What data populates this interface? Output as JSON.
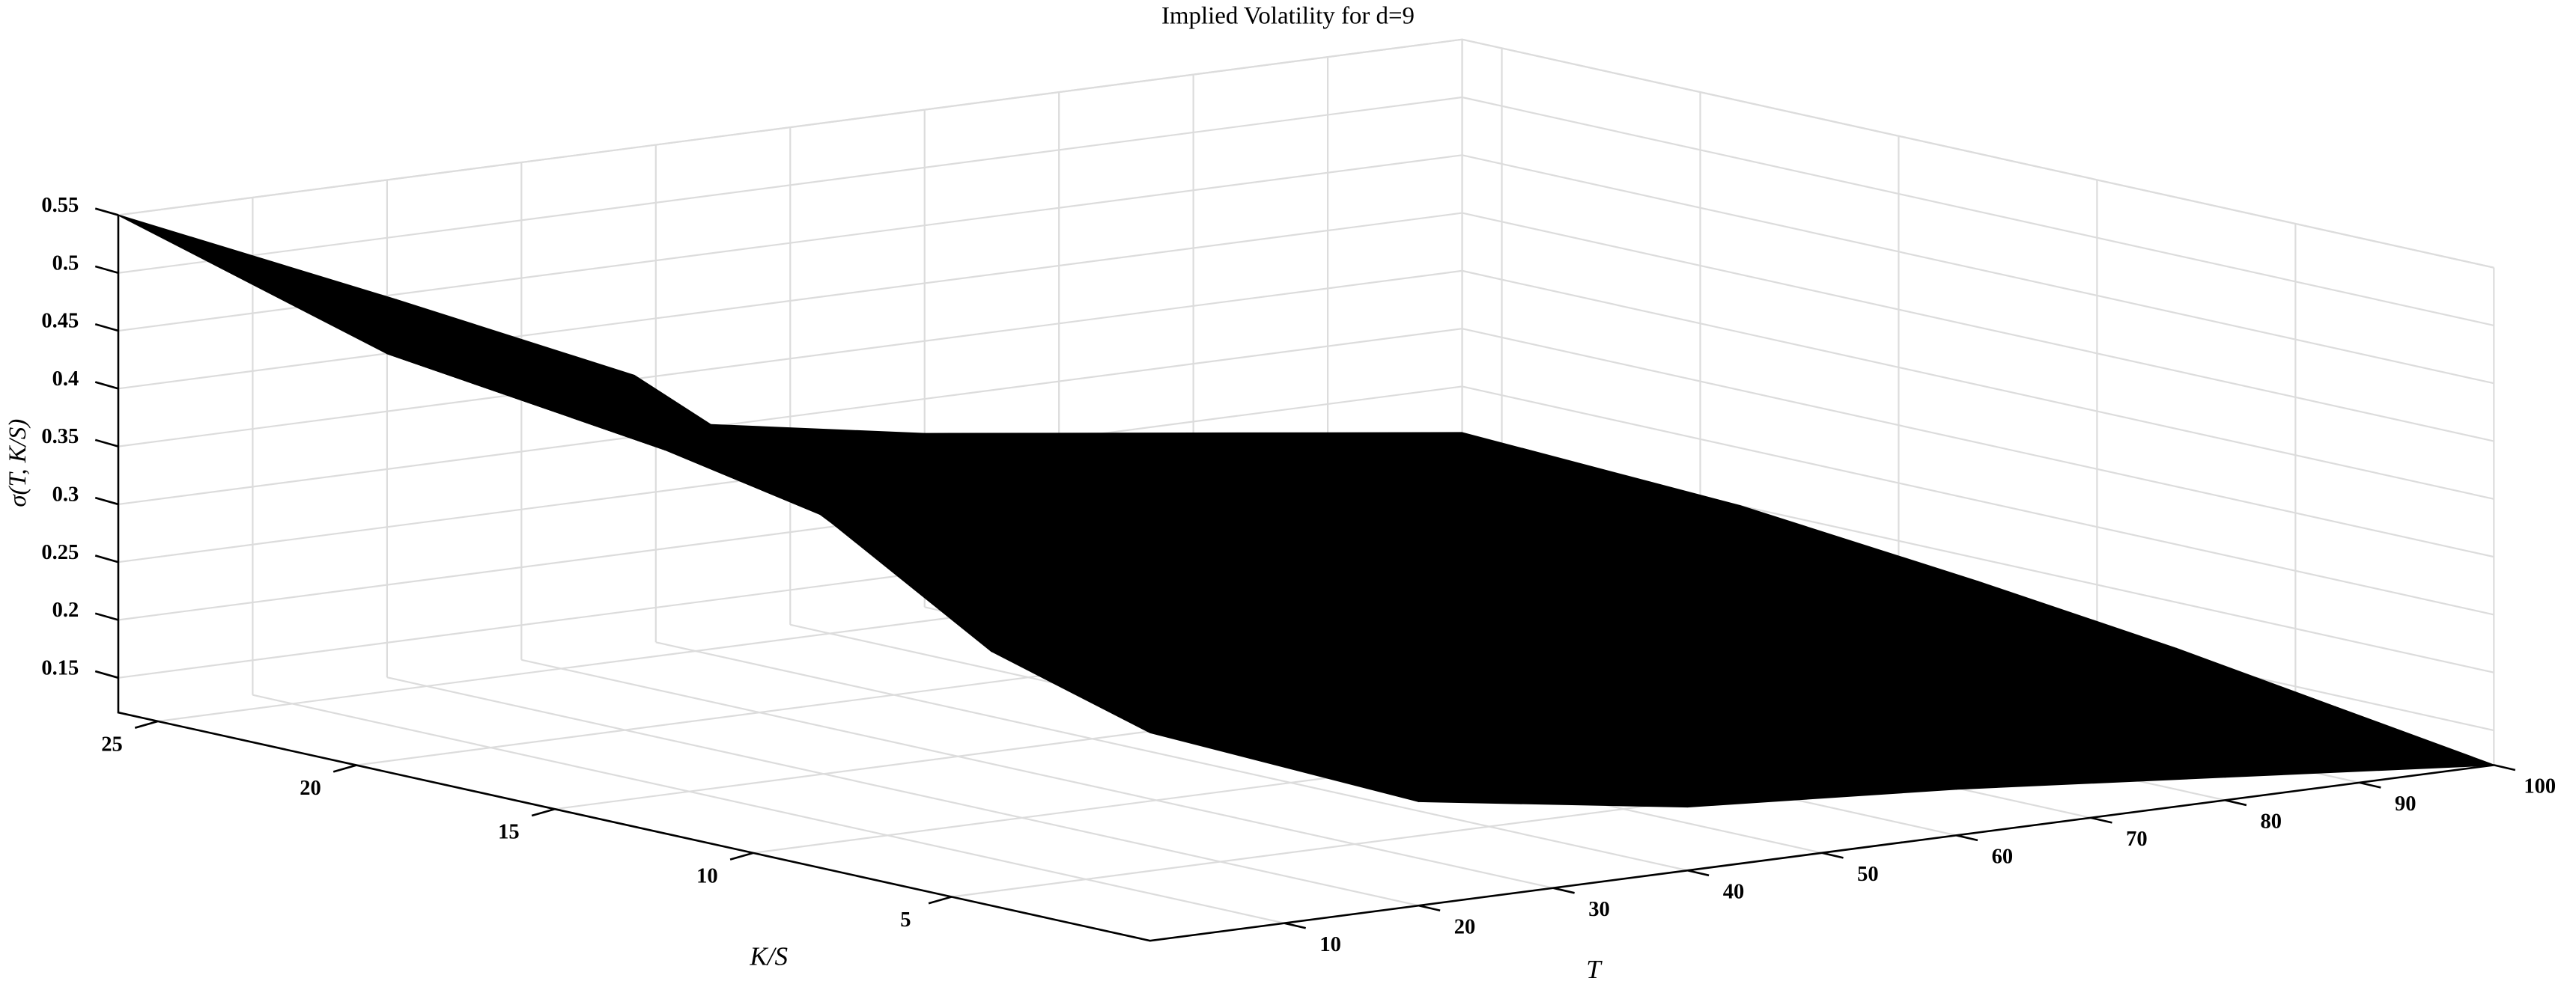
{
  "chart_data": {
    "type": "surface3d",
    "title": "Implied Volatility for d=9",
    "xlabel": "T",
    "ylabel": "K/S",
    "zlabel": "σ(T, K/S)",
    "x": [
      0,
      20,
      40,
      60,
      80,
      100
    ],
    "y": [
      0,
      4,
      8,
      13,
      19,
      26
    ],
    "z": [
      [
        0.3,
        0.21,
        0.175,
        0.16,
        0.14,
        0.12
      ],
      [
        0.34,
        0.23,
        0.19,
        0.17,
        0.15,
        0.14
      ],
      [
        0.42,
        0.27,
        0.21,
        0.19,
        0.17,
        0.16
      ],
      [
        0.51,
        0.33,
        0.25,
        0.21,
        0.19,
        0.18
      ],
      [
        0.53,
        0.37,
        0.28,
        0.24,
        0.21,
        0.2
      ],
      [
        0.55,
        0.4,
        0.31,
        0.27,
        0.24,
        0.21
      ]
    ],
    "color": "#000000",
    "xlim": [
      0,
      100
    ],
    "xticks": [
      10,
      20,
      30,
      40,
      50,
      60,
      70,
      80,
      90,
      100
    ],
    "ylim": [
      0,
      26
    ],
    "yticks": [
      5,
      10,
      15,
      20,
      25
    ],
    "zlim": [
      0.12,
      0.55
    ],
    "zticks": [
      0.15,
      0.2,
      0.25,
      0.3,
      0.35,
      0.4,
      0.45,
      0.5,
      0.55
    ],
    "grid": true
  }
}
